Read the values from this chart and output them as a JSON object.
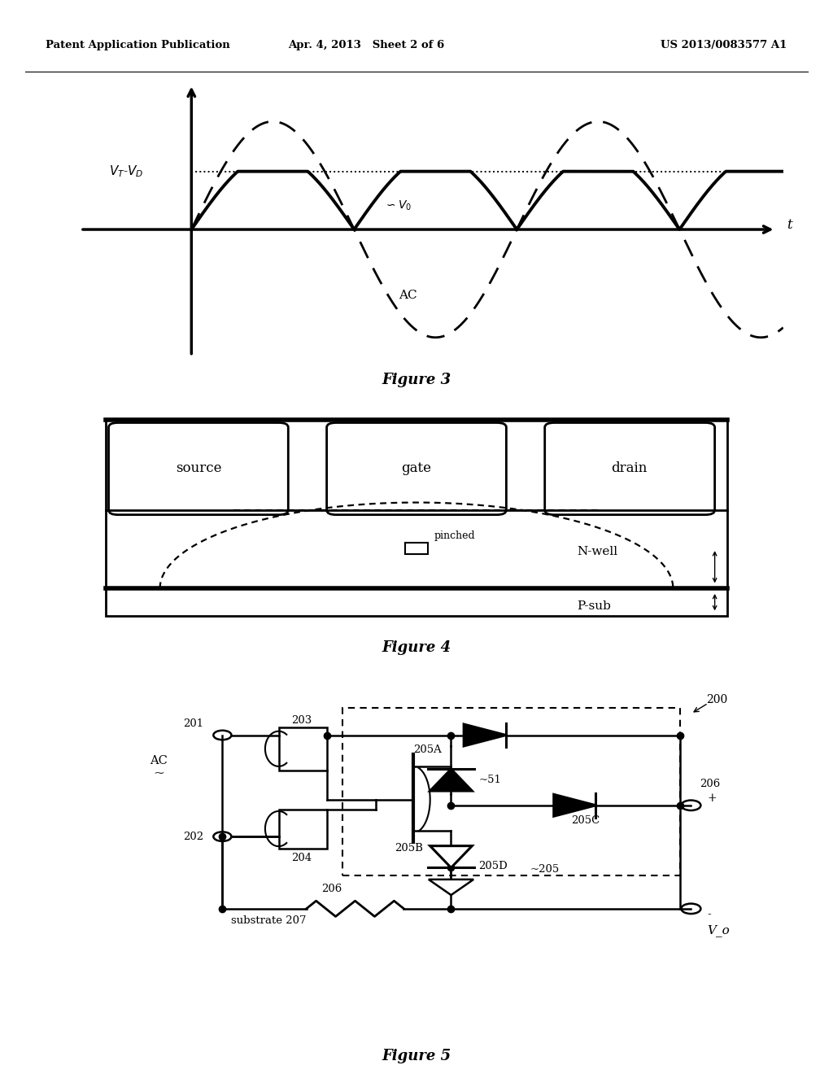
{
  "bg_color": "#ffffff",
  "header_left": "Patent Application Publication",
  "header_mid": "Apr. 4, 2013   Sheet 2 of 6",
  "header_right": "US 2013/0083577 A1",
  "fig3_caption": "Figure 3",
  "fig4_caption": "Figure 4",
  "fig5_caption": "Figure 5",
  "fig3_vtvd": "V_T-V_D",
  "fig3_vo": "~V_0",
  "fig3_ac": "AC",
  "fig3_t": "t",
  "fig4_source": "source",
  "fig4_gate": "gate",
  "fig4_drain": "drain",
  "fig4_pinched": "pinched",
  "fig4_nwell": "N-well",
  "fig4_psub": "P-sub",
  "fig5_200": "200",
  "fig5_201": "201",
  "fig5_202": "202",
  "fig5_203": "203",
  "fig5_204": "204",
  "fig5_205": "205",
  "fig5_205a": "205A",
  "fig5_205b": "205B",
  "fig5_205c": "205C",
  "fig5_205d": "205D",
  "fig5_206": "206",
  "fig5_51": "~51",
  "fig5_ac": "AC",
  "fig5_substrate": "substrate 207",
  "fig5_vo": "V_o",
  "fig5_plus": "+",
  "fig5_minus": "-"
}
